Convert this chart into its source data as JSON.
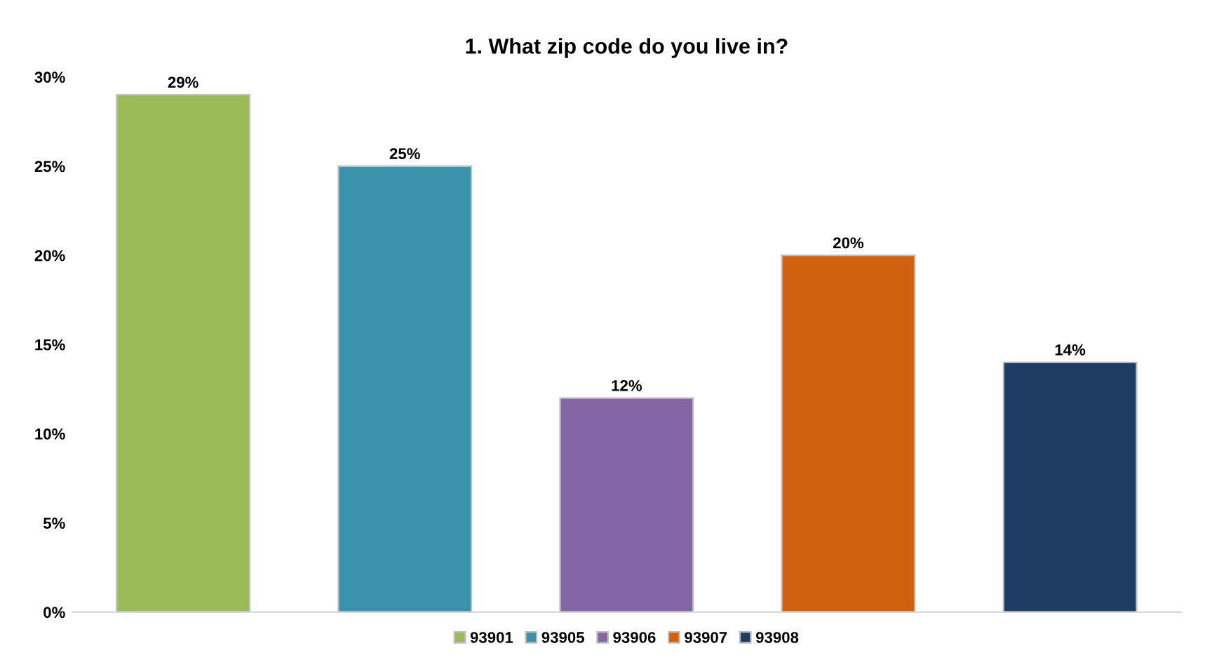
{
  "chart_data": {
    "type": "bar",
    "title": "1. What zip code do you live in?",
    "categories": [
      null,
      null,
      null,
      null,
      null
    ],
    "series": [
      {
        "name": "93901",
        "color": "#9bbb59",
        "values": [
          29,
          null,
          null,
          null,
          null
        ]
      },
      {
        "name": "93905",
        "color": "#3a93aa",
        "values": [
          null,
          25,
          null,
          null,
          null
        ]
      },
      {
        "name": "93906",
        "color": "#8466a6",
        "values": [
          null,
          null,
          12,
          null,
          null
        ]
      },
      {
        "name": "93907",
        "color": "#d0620f",
        "values": [
          null,
          null,
          null,
          20,
          null
        ]
      },
      {
        "name": "93908",
        "color": "#1f3c64",
        "values": [
          null,
          null,
          null,
          null,
          14
        ]
      }
    ],
    "ylim": [
      0,
      30
    ],
    "yticks": [
      {
        "value": 0,
        "label": "0%"
      },
      {
        "value": 5,
        "label": "5%"
      },
      {
        "value": 10,
        "label": "10%"
      },
      {
        "value": 15,
        "label": "15%"
      },
      {
        "value": 20,
        "label": "20%"
      },
      {
        "value": 25,
        "label": "25%"
      },
      {
        "value": 30,
        "label": "30%"
      }
    ],
    "value_labels": [
      "29%",
      "25%",
      "12%",
      "20%",
      "14%"
    ],
    "grid": false,
    "legend": "bottom"
  }
}
